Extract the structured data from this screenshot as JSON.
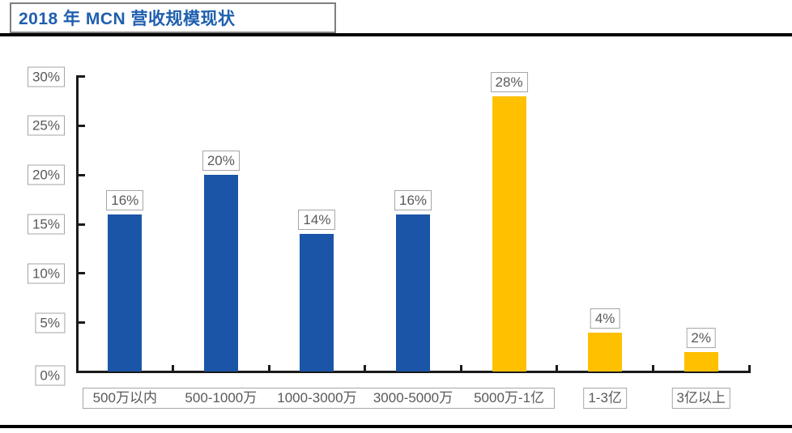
{
  "page": {
    "title": "2018 年 MCN 营收规模现状"
  },
  "chart_data": {
    "type": "bar",
    "title": "2018 年 MCN 营收规模现状",
    "categories": [
      "500万以内",
      "500-1000万",
      "1000-3000万",
      "3000-5000万",
      "5000万-1亿",
      "1-3亿",
      "3亿以上"
    ],
    "values": [
      16,
      20,
      14,
      16,
      28,
      4,
      2
    ],
    "data_labels": [
      "16%",
      "20%",
      "14%",
      "16%",
      "28%",
      "4%",
      "2%"
    ],
    "bar_colors": [
      "#1a55a8",
      "#1a55a8",
      "#1a55a8",
      "#1a55a8",
      "#ffc000",
      "#ffc000",
      "#ffc000"
    ],
    "yticks": [
      "0%",
      "5%",
      "10%",
      "15%",
      "20%",
      "25%",
      "30%"
    ],
    "ylim": [
      0,
      30
    ],
    "xlabel": "",
    "ylabel": "",
    "grid": false,
    "legend": null,
    "colors": {
      "blue_series": "#1a55a8",
      "gold_series": "#ffc000",
      "title_text": "#1f5fae",
      "axis_label_text": "#595959",
      "label_box_border": "#a6a6a6",
      "axis_line": "#1a1a1a"
    }
  }
}
